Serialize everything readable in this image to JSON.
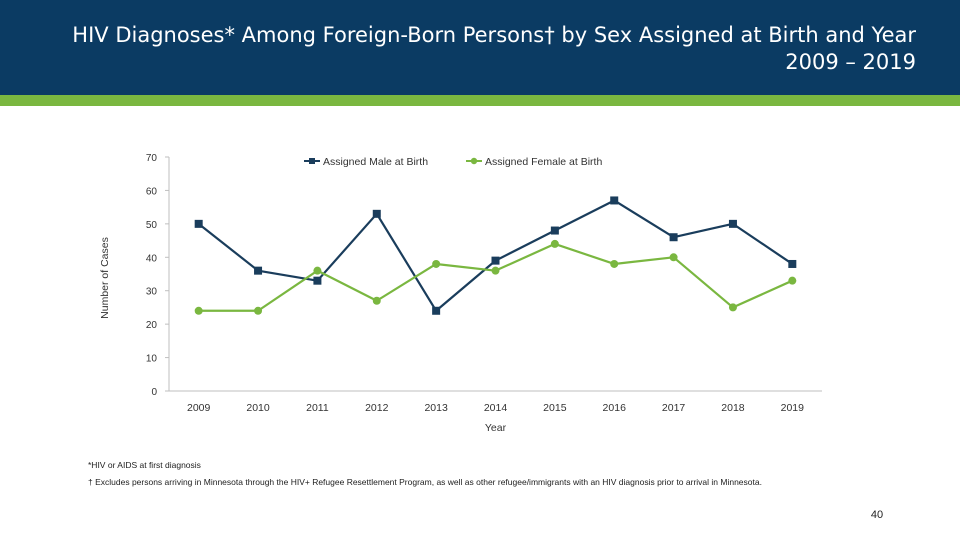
{
  "header": {
    "title_line1": "HIV Diagnoses* Among Foreign-Born Persons† by Sex Assigned at Birth and Year",
    "title_line2": "2009 – 2019",
    "bg_color": "#0b3b63",
    "accent_color": "#7ab740"
  },
  "chart_data": {
    "type": "line",
    "x": [
      "2009",
      "2010",
      "2011",
      "2012",
      "2013",
      "2014",
      "2015",
      "2016",
      "2017",
      "2018",
      "2019"
    ],
    "series": [
      {
        "name": "Assigned Male at Birth",
        "color": "#1a3d5c",
        "marker": "square",
        "values": [
          50,
          36,
          33,
          53,
          24,
          39,
          48,
          57,
          46,
          50,
          38
        ]
      },
      {
        "name": "Assigned Female at Birth",
        "color": "#7ab740",
        "marker": "circle",
        "values": [
          24,
          24,
          36,
          27,
          38,
          36,
          44,
          38,
          40,
          25,
          33
        ]
      }
    ],
    "xlabel": "Year",
    "ylabel": "Number of Cases",
    "ylim": [
      0,
      70
    ],
    "yticks": [
      0,
      10,
      20,
      30,
      40,
      50,
      60,
      70
    ],
    "legend_position": "top",
    "grid": false
  },
  "footnotes": {
    "note1": "*HIV or AIDS at first diagnosis",
    "note2": "† Excludes persons arriving in Minnesota through the HIV+ Refugee Resettlement Program, as well as other refugee/immigrants with an HIV diagnosis prior to arrival in Minnesota."
  },
  "page_number": "40"
}
